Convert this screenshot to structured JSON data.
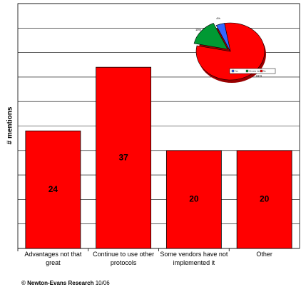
{
  "chart_data": [
    {
      "type": "bar",
      "ylabel": "# mentions",
      "categories": [
        "Advantages not that great",
        "Continue to use other protocols",
        "Some vendors have not implemented it",
        "Other"
      ],
      "values": [
        24,
        37,
        20,
        20
      ],
      "color": "#ff0000",
      "ylim": [
        0,
        50
      ],
      "yticks": [
        0,
        5,
        10,
        15,
        20,
        25,
        30,
        35,
        40,
        45,
        50
      ],
      "grid": true,
      "source": "© Newton-Evans Research",
      "date": "10/06"
    },
    {
      "type": "pie",
      "categories": [
        "Yes",
        "Already have",
        "No"
      ],
      "values": [
        4,
        15,
        81
      ],
      "value_labels": [
        "4%",
        "15%",
        "81%"
      ],
      "colors": [
        "#3366ff",
        "#009933",
        "#ff0000"
      ]
    }
  ]
}
